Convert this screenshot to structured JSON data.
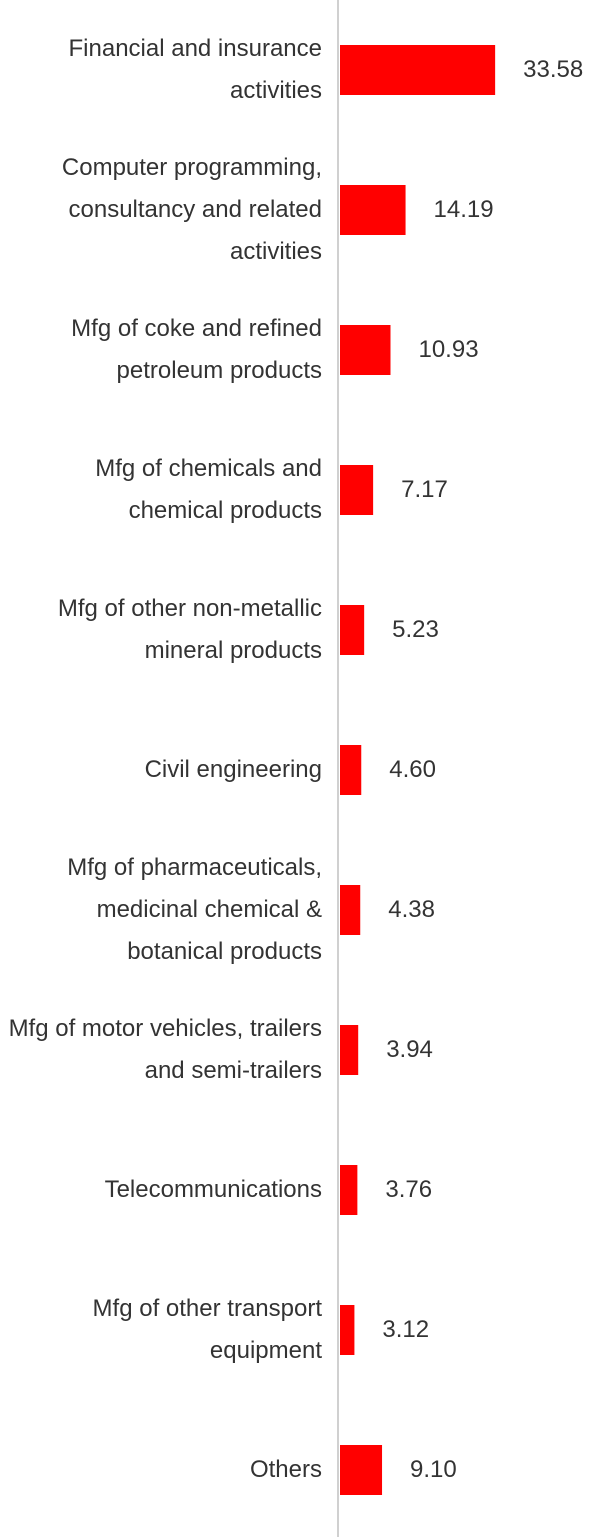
{
  "chart_data": {
    "type": "bar",
    "orientation": "horizontal",
    "color": "#ff0000",
    "categories": [
      "Financial and insurance activities",
      "Computer programming, consultancy and related activities",
      "Mfg of coke and refined petroleum products",
      "Mfg of chemicals and chemical products",
      "Mfg of other non-metallic mineral products",
      "Civil engineering",
      "Mfg of pharmaceuticals, medicinal chemical & botanical products",
      "Mfg of motor vehicles, trailers and semi-trailers",
      "Telecommunications",
      "Mfg of other transport equipment",
      "Others"
    ],
    "values": [
      33.58,
      14.19,
      10.93,
      7.17,
      5.23,
      4.6,
      4.38,
      3.94,
      3.76,
      3.12,
      9.1
    ],
    "value_labels": [
      "33.58",
      "14.19",
      "10.93",
      "7.17",
      "5.23",
      "4.60",
      "4.38",
      "3.94",
      "3.76",
      "3.12",
      "9.10"
    ]
  }
}
